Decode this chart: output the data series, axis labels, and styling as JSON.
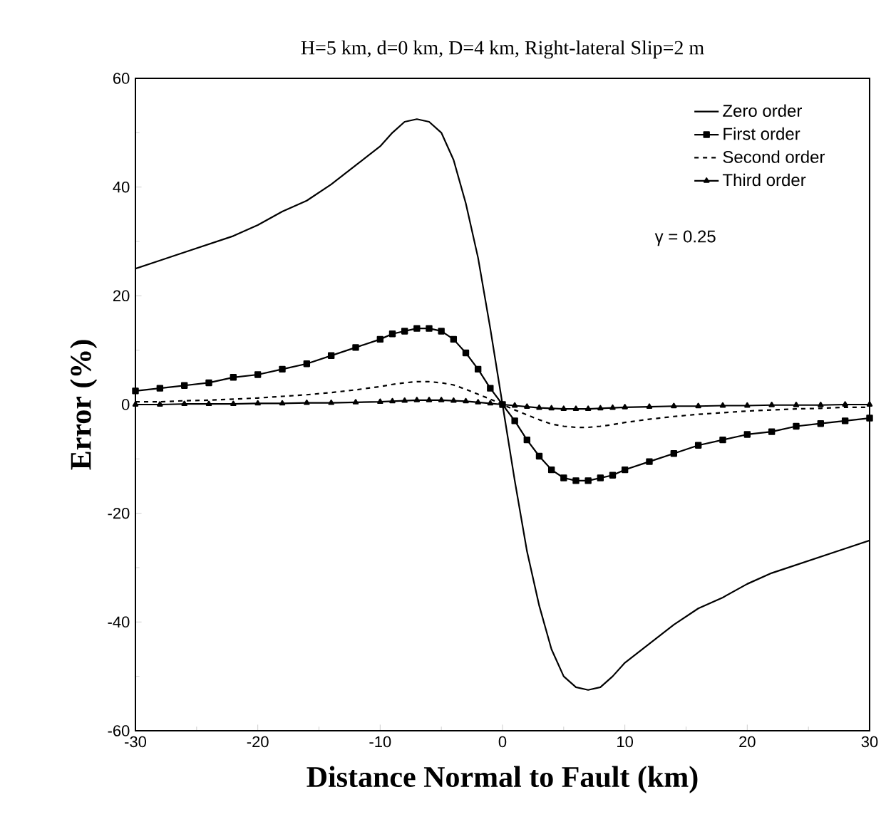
{
  "chart_data": {
    "type": "line",
    "title": "H=5 km, d=0 km, D=4 km, Right-lateral Slip=2 m",
    "xlabel": "Distance Normal to Fault (km)",
    "ylabel": "Error (%)",
    "x": [
      -30,
      -28,
      -26,
      -24,
      -22,
      -20,
      -18,
      -16,
      -14,
      -12,
      -10,
      -9,
      -8,
      -7,
      -6,
      -5,
      -4,
      -3,
      -2,
      -1,
      0,
      1,
      2,
      3,
      4,
      5,
      6,
      7,
      8,
      9,
      10,
      12,
      14,
      16,
      18,
      20,
      22,
      24,
      26,
      28,
      30
    ],
    "series": [
      {
        "name": "Zero order",
        "color": "#000000",
        "marker": "none",
        "line_style": "solid",
        "values": [
          25,
          26.5,
          28,
          29.5,
          31,
          33,
          35.5,
          37.5,
          40.5,
          44,
          47.5,
          50,
          52,
          52.5,
          52,
          50,
          45,
          37,
          27,
          14,
          0,
          -14,
          -27,
          -37,
          -45,
          -50,
          -52,
          -52.5,
          -52,
          -50,
          -47.5,
          -44,
          -40.5,
          -37.5,
          -35.5,
          -33,
          -31,
          -29.5,
          -28,
          -26.5,
          -25
        ]
      },
      {
        "name": "First order",
        "color": "#000000",
        "marker": "square",
        "line_style": "solid",
        "values": [
          2.5,
          3,
          3.5,
          4,
          5,
          5.5,
          6.5,
          7.5,
          9,
          10.5,
          12,
          13,
          13.5,
          14,
          14,
          13.5,
          12,
          9.5,
          6.5,
          3,
          0,
          -3,
          -6.5,
          -9.5,
          -12,
          -13.5,
          -14,
          -14,
          -13.5,
          -13,
          -12,
          -10.5,
          -9,
          -7.5,
          -6.5,
          -5.5,
          -5,
          -4,
          -3.5,
          -3,
          -2.5
        ]
      },
      {
        "name": "Second order",
        "color": "#000000",
        "marker": "none",
        "line_style": "dashed",
        "values": [
          0.5,
          0.5,
          0.7,
          0.8,
          1,
          1.2,
          1.5,
          1.8,
          2.2,
          2.7,
          3.3,
          3.7,
          4,
          4.2,
          4.2,
          4,
          3.6,
          2.8,
          1.9,
          1,
          0,
          -1,
          -1.9,
          -2.8,
          -3.6,
          -4,
          -4.2,
          -4.2,
          -4,
          -3.7,
          -3.3,
          -2.7,
          -2.2,
          -1.8,
          -1.5,
          -1.2,
          -1,
          -0.8,
          -0.7,
          -0.5,
          -0.5
        ]
      },
      {
        "name": "Third order",
        "color": "#000000",
        "marker": "triangle",
        "line_style": "solid",
        "values": [
          0,
          0,
          0.1,
          0.1,
          0.1,
          0.2,
          0.2,
          0.3,
          0.3,
          0.4,
          0.5,
          0.6,
          0.7,
          0.8,
          0.8,
          0.8,
          0.7,
          0.6,
          0.4,
          0.2,
          0,
          -0.2,
          -0.4,
          -0.6,
          -0.7,
          -0.8,
          -0.8,
          -0.8,
          -0.7,
          -0.6,
          -0.5,
          -0.4,
          -0.3,
          -0.3,
          -0.2,
          -0.2,
          -0.1,
          -0.1,
          -0.1,
          0,
          0
        ]
      }
    ],
    "xlim": [
      -30,
      30
    ],
    "xticks": [
      -30,
      -20,
      -10,
      0,
      10,
      20,
      30
    ],
    "ylim": [
      -60,
      60
    ],
    "yticks": [
      -60,
      -40,
      -20,
      0,
      20,
      40,
      60
    ],
    "legend": "top right",
    "annotations": [
      "γ = 0.25"
    ]
  }
}
